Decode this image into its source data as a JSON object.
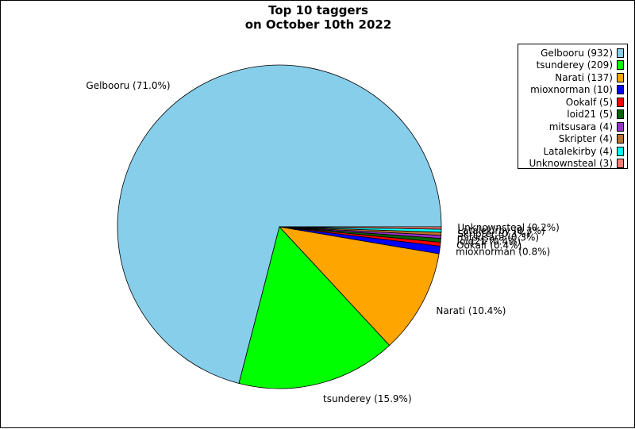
{
  "chart_data": {
    "type": "pie",
    "title": "Top 10 taggers\non October 10th 2022",
    "slices": [
      {
        "name": "Gelbooru",
        "value": 932,
        "color": "#87CEEB",
        "legend": "Gelbooru (932)",
        "label": "Gelbooru (71.0%)"
      },
      {
        "name": "tsunderey",
        "value": 209,
        "color": "#00FF00",
        "legend": "tsunderey (209)",
        "label": "tsunderey (15.9%)"
      },
      {
        "name": "Narati",
        "value": 137,
        "color": "#FFA500",
        "legend": "Narati (137)",
        "label": "Narati (10.4%)"
      },
      {
        "name": "mioxnorman",
        "value": 10,
        "color": "#0000FF",
        "legend": "mioxnorman (10)",
        "label": "mioxnorman (0.8%)"
      },
      {
        "name": "Ookalf",
        "value": 5,
        "color": "#FF0000",
        "legend": "Ookalf (5)",
        "label": "Ookalf (0.4%)"
      },
      {
        "name": "loid21",
        "value": 5,
        "color": "#006400",
        "legend": "loid21 (5)",
        "label": "loid21 (0.4%)"
      },
      {
        "name": "mitsusara",
        "value": 4,
        "color": "#9932CC",
        "legend": "mitsusara (4)",
        "label": "mitsusara (0.3%)"
      },
      {
        "name": "Skripter",
        "value": 4,
        "color": "#B8732A",
        "legend": "Skripter (4)",
        "label": "Skripter (0.3%)"
      },
      {
        "name": "Latalekirby",
        "value": 4,
        "color": "#00FFFF",
        "legend": "Latalekirby (4)",
        "label": "Latalekirby (0.3%)"
      },
      {
        "name": "Unknownsteal",
        "value": 3,
        "color": "#F08070",
        "legend": "Unknownsteal (3)",
        "label": "Unknownsteal (0.2%)"
      }
    ],
    "legend_position": "top-right"
  }
}
